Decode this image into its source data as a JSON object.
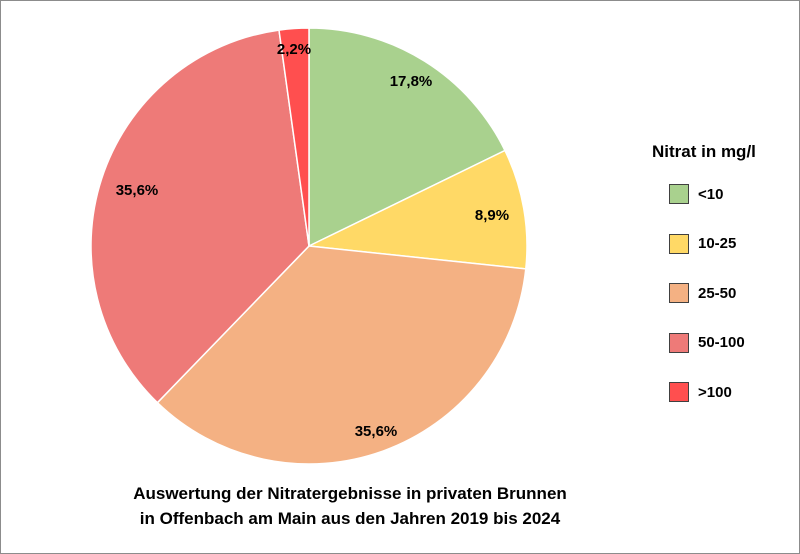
{
  "chart_data": {
    "type": "pie",
    "title_lines": [
      "Auswertung der Nitratergebnisse in privaten Brunnen",
      "in Offenbach am Main aus den Jahren 2019 bis 2024"
    ],
    "legend_title": "Nitrat in mg/l",
    "legend_placement": "right",
    "start_angle_deg": 0,
    "direction": "clockwise",
    "slices": [
      {
        "label": "<10",
        "value": 17.8,
        "value_label": "17,8%",
        "color": "#a9d18e"
      },
      {
        "label": "10-25",
        "value": 8.9,
        "value_label": "8,9%",
        "color": "#ffd966"
      },
      {
        "label": "25-50",
        "value": 35.6,
        "value_label": "35,6%",
        "color": "#f4b183"
      },
      {
        "label": "50-100",
        "value": 35.6,
        "value_label": "35,6%",
        "color": "#ee7a78"
      },
      {
        "label": ">100",
        "value": 2.2,
        "value_label": "2,2%",
        "color": "#ff4f4f"
      }
    ]
  }
}
